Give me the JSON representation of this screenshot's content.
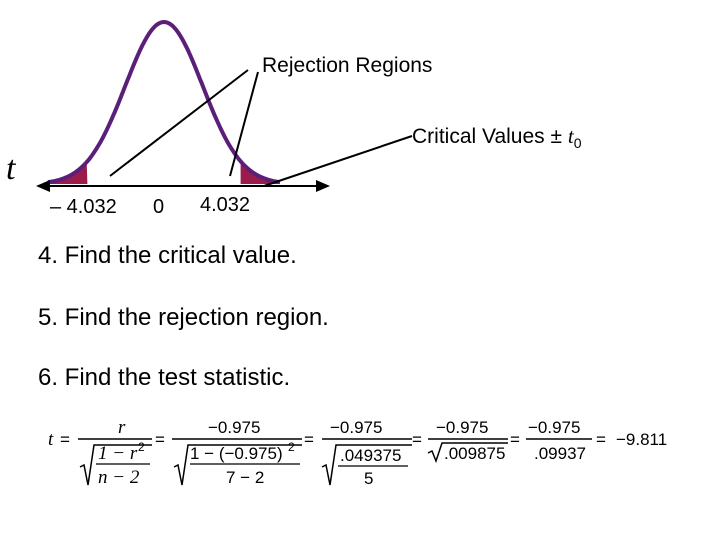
{
  "diagram": {
    "rejection_label": "Rejection Regions",
    "critical_label": "Critical Values ± ",
    "critical_symbol": "t",
    "critical_subscript": "0",
    "axis_variable": "t",
    "ticks": [
      "– 4.032",
      "0",
      "4.032"
    ],
    "critical_value": 4.032,
    "colors": {
      "curve": "#5b1f7a",
      "rejection_fill": "#9b1b4b",
      "axis": "#000000"
    }
  },
  "steps": [
    "4. Find the critical value.",
    "5. Find the rejection region.",
    "6. Find the test statistic."
  ],
  "formula": {
    "lhs": "t",
    "step1": {
      "num": "r",
      "den_num": "1 − r",
      "den_num_exp": "2",
      "den_den": "n − 2"
    },
    "step2": {
      "num": "−0.975",
      "den_num": "1 − (−0.975)",
      "den_num_exp": "2",
      "den_den": "7 − 2"
    },
    "step3": {
      "num": "−0.975",
      "den_num": ".049375",
      "den_den": "5"
    },
    "step4": {
      "num": "−0.975",
      "den": ".009875"
    },
    "step5": {
      "num": "−0.975",
      "den": ".09937"
    },
    "result": "−9.811",
    "equals": "="
  }
}
